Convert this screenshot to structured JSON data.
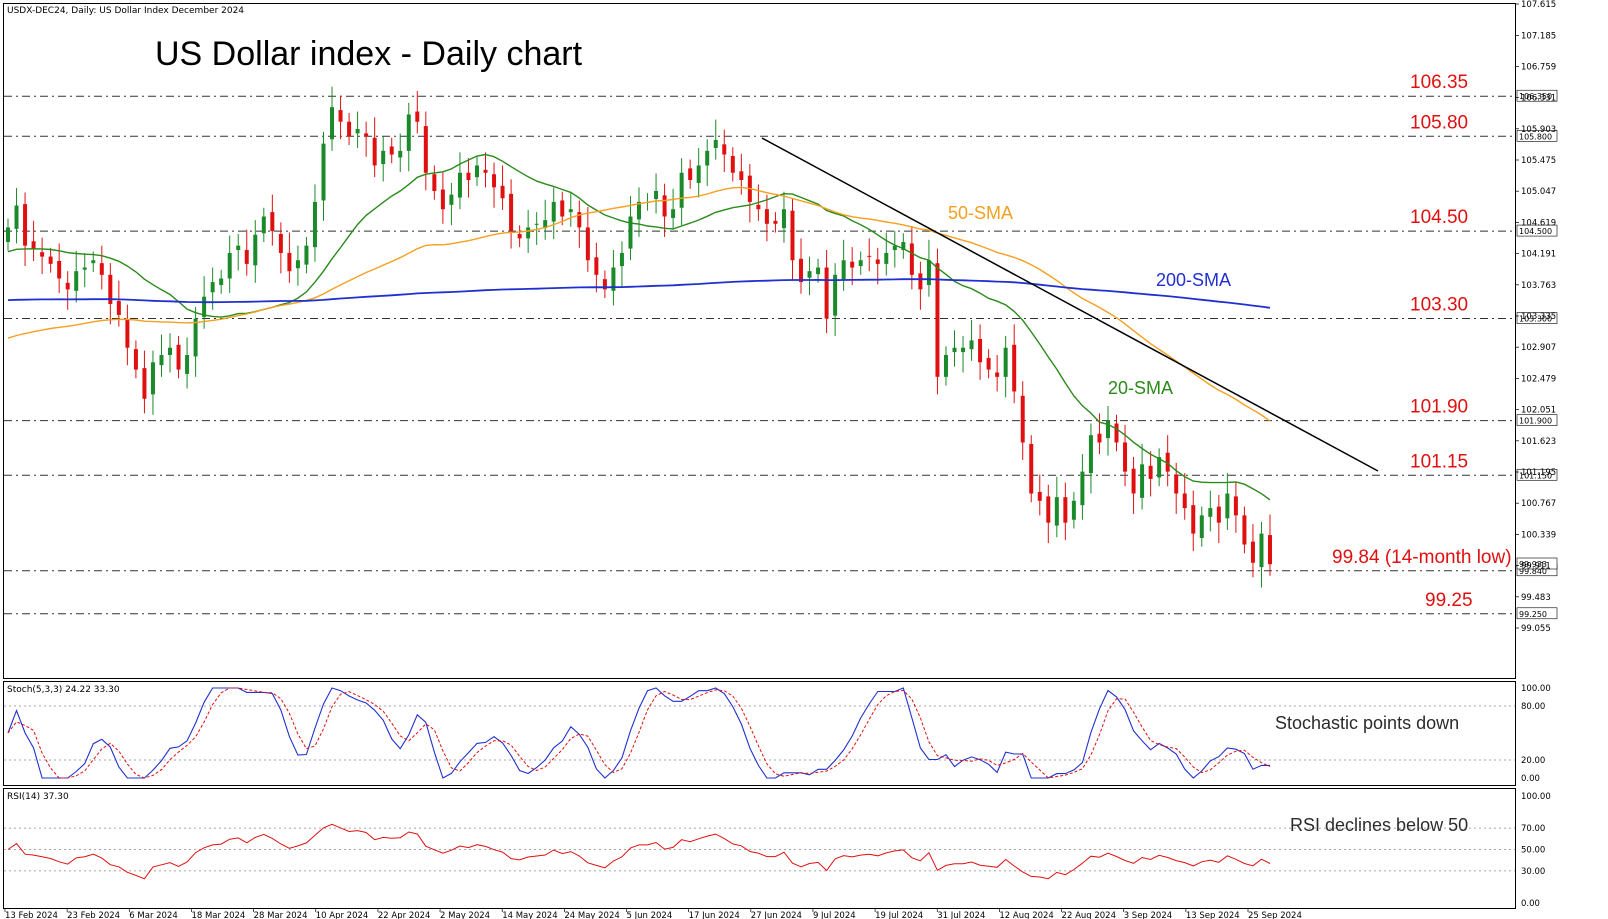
{
  "header": {
    "symbol_line": "USDX-DEC24, Daily:  US Dollar Index December 2024",
    "title": "US Dollar index - Daily chart"
  },
  "colors": {
    "bull_candle": "#1a8a2a",
    "bear_candle": "#e01010",
    "sma20": "#2a8a1a",
    "sma50": "#f5a020",
    "sma200": "#2030d0",
    "trendline": "#000000",
    "level_text": "#e01010",
    "annotation_green": "#2a7a1a",
    "stoch_main": "#2030d0",
    "stoch_signal": "#e01010",
    "rsi": "#e01010"
  },
  "chart_data": {
    "type": "candlestick",
    "title": "US Dollar index - Daily chart",
    "y_range": [
      98.8,
      107.615
    ],
    "y_ticks": [
      "107.615",
      "107.185",
      "106.759",
      "106.331",
      "105.903",
      "105.475",
      "105.047",
      "104.619",
      "104.191",
      "103.763",
      "103.335",
      "102.907",
      "102.479",
      "102.051",
      "101.623",
      "101.195",
      "100.767",
      "100.339",
      "99.911",
      "99.483",
      "99.055"
    ],
    "x_labels": [
      "13 Feb 2024",
      "23 Feb 2024",
      "6 Mar 2024",
      "18 Mar 2024",
      "28 Mar 2024",
      "10 Apr 2024",
      "22 Apr 2024",
      "2 May 2024",
      "14 May 2024",
      "24 May 2024",
      "5 Jun 2024",
      "17 Jun 2024",
      "27 Jun 2024",
      "9 Jul 2024",
      "19 Jul 2024",
      "31 Jul 2024",
      "12 Aug 2024",
      "22 Aug 2024",
      "3 Sep 2024",
      "13 Sep 2024",
      "25 Sep 2024"
    ],
    "levels": [
      {
        "value": 106.35,
        "label": "106.35",
        "box": "106.350"
      },
      {
        "value": 105.8,
        "label": "105.80",
        "box": "105.800"
      },
      {
        "value": 104.5,
        "label": "104.50",
        "box": "104.500"
      },
      {
        "value": 103.3,
        "label": "103.30",
        "box": "103.300"
      },
      {
        "value": 101.9,
        "label": "101.90",
        "box": "101.900"
      },
      {
        "value": 101.15,
        "label": "101.15",
        "box": "101.150"
      },
      {
        "value": 99.84,
        "label": "99.84 (14-month low)",
        "box": "99.840"
      },
      {
        "value": 99.25,
        "label": "99.25",
        "box": "99.250"
      }
    ],
    "current_price_box": "99.933",
    "closes": [
      104.55,
      104.85,
      104.3,
      104.25,
      104.15,
      104.05,
      103.85,
      103.7,
      103.95,
      104.0,
      104.1,
      103.9,
      103.5,
      103.35,
      102.9,
      102.6,
      102.2,
      102.7,
      102.8,
      102.9,
      102.6,
      102.8,
      103.3,
      103.6,
      103.8,
      103.85,
      104.2,
      104.3,
      104.05,
      104.45,
      104.7,
      104.5,
      104.2,
      103.95,
      104.1,
      104.3,
      104.9,
      105.7,
      106.2,
      106.0,
      105.8,
      105.9,
      105.8,
      105.4,
      105.6,
      105.55,
      105.6,
      106.1,
      106.0,
      105.3,
      105.05,
      104.8,
      105.0,
      105.3,
      105.2,
      105.4,
      105.3,
      105.1,
      104.95,
      104.5,
      104.4,
      104.55,
      104.6,
      104.65,
      104.9,
      104.7,
      104.8,
      104.55,
      104.1,
      103.9,
      103.7,
      104.0,
      104.2,
      104.7,
      104.9,
      104.9,
      105.05,
      104.7,
      104.8,
      105.3,
      105.2,
      105.4,
      105.6,
      105.75,
      105.55,
      105.3,
      105.2,
      104.9,
      104.8,
      104.6,
      104.6,
      104.8,
      104.1,
      103.8,
      103.95,
      104.0,
      103.3,
      103.9,
      104.1,
      104.0,
      104.1,
      104.15,
      104.05,
      104.2,
      104.3,
      104.35,
      103.9,
      103.7,
      104.1,
      102.5,
      102.8,
      102.9,
      102.9,
      103.0,
      102.7,
      102.6,
      102.5,
      102.9,
      102.3,
      101.6,
      100.9,
      100.8,
      100.5,
      100.85,
      100.5,
      100.8,
      101.2,
      101.7,
      101.6,
      101.9,
      101.6,
      101.2,
      100.9,
      101.3,
      101.1,
      101.4,
      101.2,
      100.9,
      100.7,
      100.35,
      100.6,
      100.7,
      100.5,
      100.9,
      100.6,
      100.2,
      99.95,
      100.35,
      99.93
    ],
    "sma_labels": {
      "sma20": "20-SMA",
      "sma50": "50-SMA",
      "sma200": "200-SMA"
    },
    "stochastic": {
      "title": "Stoch(5,3,3) 24.22 33.30",
      "y_ticks": [
        "100.00",
        "80.00",
        "20.00",
        "0.00"
      ],
      "annotation": "Stochastic points down"
    },
    "rsi": {
      "title": "RSI(14) 37.30",
      "y_ticks": [
        "100.00",
        "70.00",
        "50.00",
        "30.00",
        "0.00"
      ],
      "annotation": "RSI declines below 50"
    }
  }
}
